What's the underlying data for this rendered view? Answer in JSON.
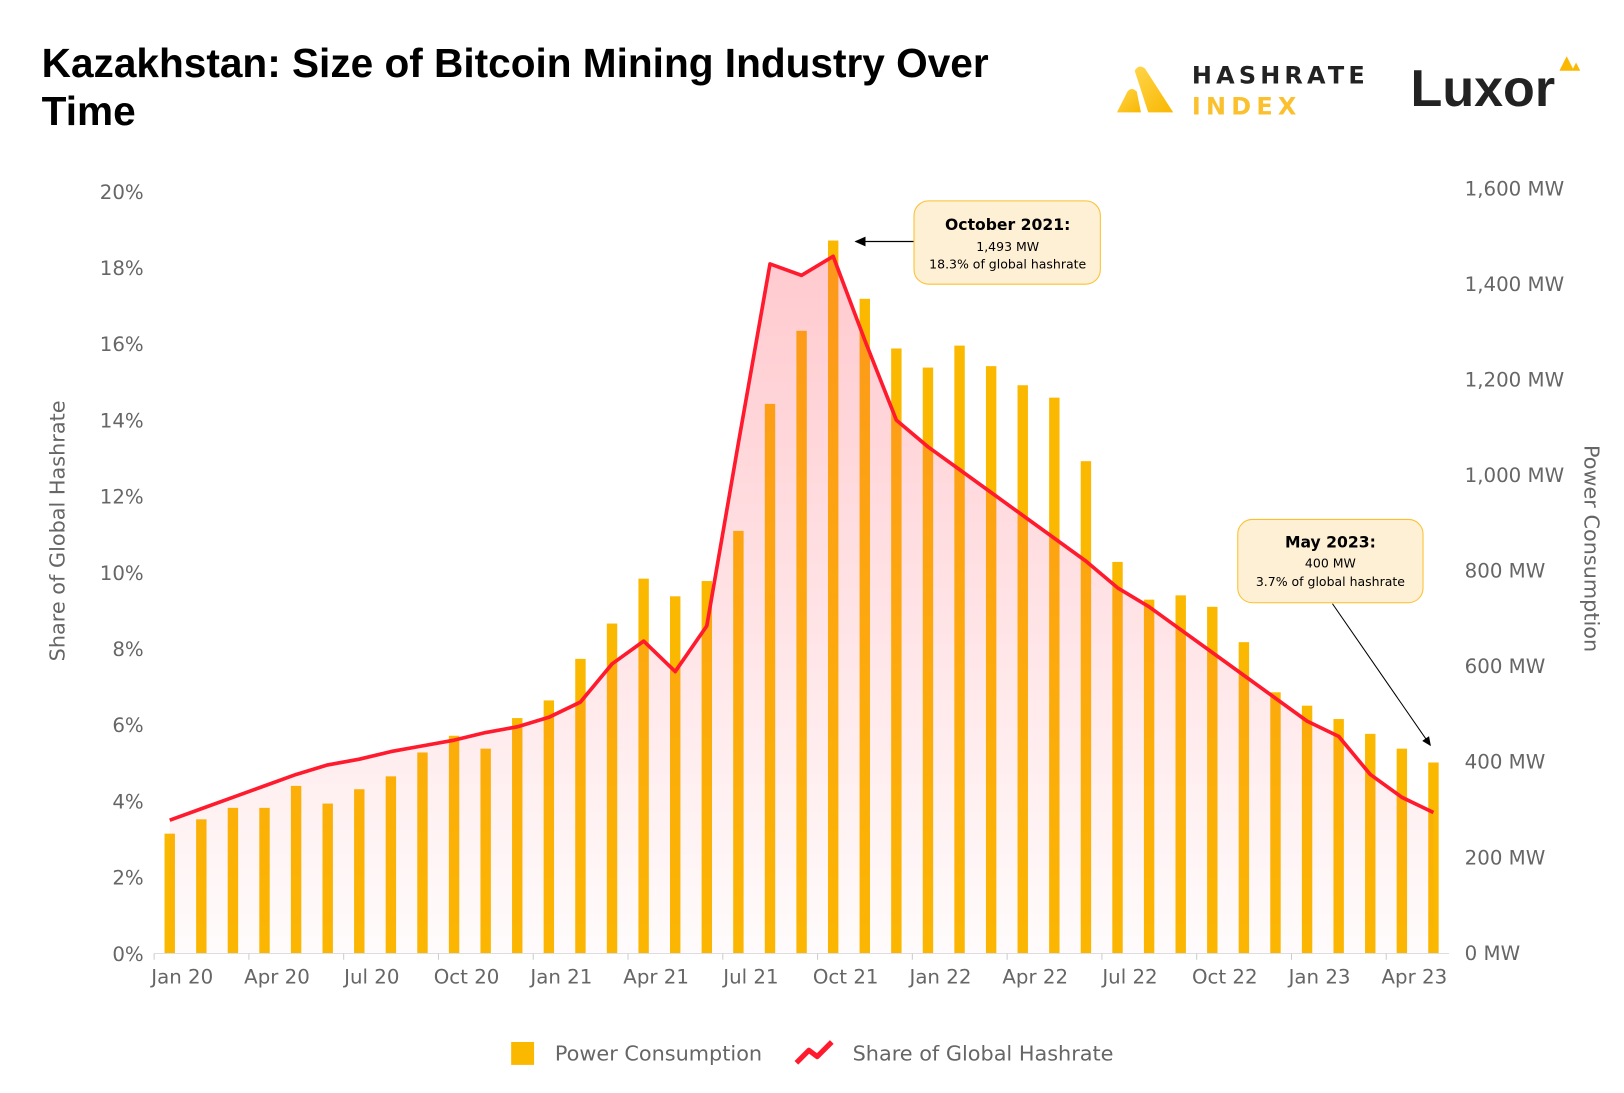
{
  "header": {
    "title_line1": "Kazakhstan: Size of Bitcoin Mining Industry Over",
    "title_line2": "Time",
    "logo_hashrate_top": "HASHRATE",
    "logo_hashrate_bottom": "INDEX",
    "logo_luxor": "Luxor"
  },
  "colors": {
    "bar": "#FBB800",
    "line": "#FF1A2E",
    "area": "#FF4D5E",
    "annotation_bg": "#FEF0D5",
    "annotation_border": "#FBC02D"
  },
  "chart_data": {
    "type": "bar+line",
    "title": "Kazakhstan: Size of Bitcoin Mining Industry Over Time",
    "categories": [
      "Jan 20",
      "Feb 20",
      "Mar 20",
      "Apr 20",
      "May 20",
      "Jun 20",
      "Jul 20",
      "Aug 20",
      "Sep 20",
      "Oct 20",
      "Nov 20",
      "Dec 20",
      "Jan 21",
      "Feb 21",
      "Mar 21",
      "Apr 21",
      "May 21",
      "Jun 21",
      "Jul 21",
      "Aug 21",
      "Sep 21",
      "Oct 21",
      "Nov 21",
      "Dec 21",
      "Jan 22",
      "Feb 22",
      "Mar 22",
      "Apr 22",
      "May 22",
      "Jun 22",
      "Jul 22",
      "Aug 22",
      "Sep 22",
      "Oct 22",
      "Nov 22",
      "Dec 22",
      "Jan 23",
      "Feb 23",
      "Mar 23",
      "Apr 23",
      "May 23"
    ],
    "x_tick_labels": [
      "Jan 20",
      "Apr 20",
      "Jul 20",
      "Oct 20",
      "Jan 21",
      "Apr 21",
      "Jul 21",
      "Oct 21",
      "Jan 22",
      "Apr 22",
      "Jul 22",
      "Oct 22",
      "Jan 23",
      "Apr 23"
    ],
    "series": [
      {
        "name": "Power Consumption",
        "type": "bar",
        "axis": "right",
        "unit": "MW",
        "values": [
          251,
          281,
          305,
          305,
          351,
          314,
          344,
          371,
          421,
          456,
          429,
          493,
          530,
          617,
          691,
          785,
          748,
          780,
          885,
          1151,
          1304,
          1493,
          1371,
          1267,
          1227,
          1273,
          1230,
          1190,
          1164,
          1031,
          820,
          741,
          750,
          726,
          652,
          547,
          519,
          491,
          460,
          429,
          400
        ]
      },
      {
        "name": "Share of Global Hashrate",
        "type": "line",
        "axis": "left",
        "unit": "%",
        "values": [
          3.5,
          3.8,
          4.1,
          4.4,
          4.7,
          4.95,
          5.1,
          5.3,
          5.45,
          5.6,
          5.8,
          5.95,
          6.2,
          6.6,
          7.6,
          8.2,
          7.4,
          8.6,
          13.4,
          18.1,
          17.8,
          18.3,
          16.1,
          14.0,
          13.3,
          12.7,
          12.1,
          11.5,
          10.9,
          10.3,
          9.6,
          9.1,
          8.5,
          7.9,
          7.3,
          6.7,
          6.1,
          5.7,
          4.7,
          4.1,
          3.7
        ]
      }
    ],
    "y_left": {
      "label": "Share of Global Hashrate",
      "range": [
        0,
        20
      ],
      "ticks": [
        "0%",
        "2%",
        "4%",
        "6%",
        "8%",
        "10%",
        "12%",
        "14%",
        "16%",
        "18%",
        "20%"
      ]
    },
    "y_right": {
      "label": "Power Consumption",
      "range": [
        0,
        1600
      ],
      "ticks": [
        "0 MW",
        "200 MW",
        "400 MW",
        "600 MW",
        "800 MW",
        "1,000 MW",
        "1,200 MW",
        "1,400 MW",
        "1,600 MW"
      ]
    },
    "grid": false,
    "legend": {
      "position": "bottom",
      "items": [
        "Power Consumption",
        "Share of Global Hashrate"
      ]
    },
    "annotations": [
      {
        "title": "October 2021:",
        "line1": "1,493 MW",
        "line2": "18.3% of global hashrate"
      },
      {
        "title": "May 2023:",
        "line1": "400 MW",
        "line2": "3.7% of global hashrate"
      }
    ]
  }
}
